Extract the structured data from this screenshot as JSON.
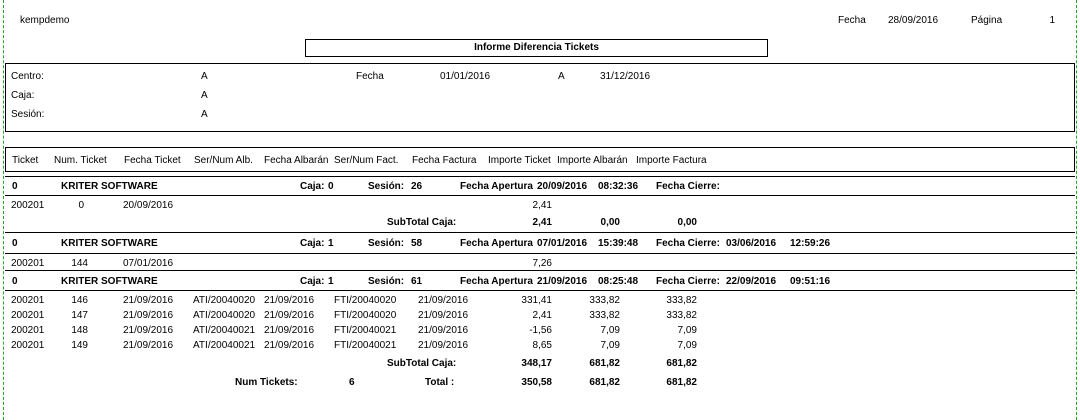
{
  "header": {
    "company": "kempdemo",
    "date_label": "Fecha",
    "date_value": "28/09/2016",
    "page_label": "Página",
    "page_value": "1"
  },
  "title": "Informe Diferencia Tickets",
  "filters": {
    "centro_label": "Centro:",
    "centro_value": "A",
    "caja_label": "Caja:",
    "caja_value": "A",
    "sesion_label": "Sesión:",
    "sesion_value": "A",
    "fecha_label": "Fecha",
    "fecha_from": "01/01/2016",
    "fecha_to_label": "A",
    "fecha_to": "31/12/2016"
  },
  "columns": [
    "Ticket",
    "Num. Ticket",
    "Fecha Ticket",
    "Ser/Num Alb.",
    "Fecha Albarán",
    "Ser/Num Fact.",
    "Fecha Factura",
    "Importe Ticket",
    "Importe Albarán",
    "Importe Factura"
  ],
  "groups": [
    {
      "id": "0",
      "company": "KRITER SOFTWARE",
      "caja_label": "Caja:",
      "caja": "0",
      "sesion_label": "Sesión:",
      "sesion": "26",
      "apertura_label": "Fecha Apertura",
      "apertura_fecha": "20/09/2016",
      "apertura_hora": "08:32:36",
      "cierre_label": "Fecha Cierre:",
      "cierre_fecha": "",
      "cierre_hora": "",
      "rows": [
        {
          "ticket": "200201",
          "num": "0",
          "fecha": "20/09/2016",
          "alb": "",
          "fecha_alb": "",
          "fact": "",
          "fecha_fact": "",
          "imp_ticket": "2,41",
          "imp_alb": "",
          "imp_fact": ""
        }
      ],
      "subtotal": {
        "label": "SubTotal Caja:",
        "ticket": "2,41",
        "alb": "0,00",
        "fact": "0,00"
      }
    },
    {
      "id": "0",
      "company": "KRITER SOFTWARE",
      "caja_label": "Caja:",
      "caja": "1",
      "sesion_label": "Sesión:",
      "sesion": "58",
      "apertura_label": "Fecha Apertura",
      "apertura_fecha": "07/01/2016",
      "apertura_hora": "15:39:48",
      "cierre_label": "Fecha Cierre:",
      "cierre_fecha": "03/06/2016",
      "cierre_hora": "12:59:26",
      "rows": [
        {
          "ticket": "200201",
          "num": "144",
          "fecha": "07/01/2016",
          "alb": "",
          "fecha_alb": "",
          "fact": "",
          "fecha_fact": "",
          "imp_ticket": "7,26",
          "imp_alb": "",
          "imp_fact": ""
        }
      ],
      "subtotal": null
    },
    {
      "id": "0",
      "company": "KRITER SOFTWARE",
      "caja_label": "Caja:",
      "caja": "1",
      "sesion_label": "Sesión:",
      "sesion": "61",
      "apertura_label": "Fecha Apertura",
      "apertura_fecha": "21/09/2016",
      "apertura_hora": "08:25:48",
      "cierre_label": "Fecha Cierre:",
      "cierre_fecha": "22/09/2016",
      "cierre_hora": "09:51:16",
      "rows": [
        {
          "ticket": "200201",
          "num": "146",
          "fecha": "21/09/2016",
          "alb": "ATI/20040020",
          "fecha_alb": "21/09/2016",
          "fact": "FTI/20040020",
          "fecha_fact": "21/09/2016",
          "imp_ticket": "331,41",
          "imp_alb": "333,82",
          "imp_fact": "333,82"
        },
        {
          "ticket": "200201",
          "num": "147",
          "fecha": "21/09/2016",
          "alb": "ATI/20040020",
          "fecha_alb": "21/09/2016",
          "fact": "FTI/20040020",
          "fecha_fact": "21/09/2016",
          "imp_ticket": "2,41",
          "imp_alb": "333,82",
          "imp_fact": "333,82"
        },
        {
          "ticket": "200201",
          "num": "148",
          "fecha": "21/09/2016",
          "alb": "ATI/20040021",
          "fecha_alb": "21/09/2016",
          "fact": "FTI/20040021",
          "fecha_fact": "21/09/2016",
          "imp_ticket": "-1,56",
          "imp_alb": "7,09",
          "imp_fact": "7,09"
        },
        {
          "ticket": "200201",
          "num": "149",
          "fecha": "21/09/2016",
          "alb": "ATI/20040021",
          "fecha_alb": "21/09/2016",
          "fact": "FTI/20040021",
          "fecha_fact": "21/09/2016",
          "imp_ticket": "8,65",
          "imp_alb": "7,09",
          "imp_fact": "7,09"
        }
      ],
      "subtotal": {
        "label": "SubTotal Caja:",
        "ticket": "348,17",
        "alb": "681,82",
        "fact": "681,82"
      }
    }
  ],
  "totals": {
    "num_label": "Num Tickets:",
    "num_value": "6",
    "total_label": "Total :",
    "ticket": "350,58",
    "alb": "681,82",
    "fact": "681,82"
  }
}
